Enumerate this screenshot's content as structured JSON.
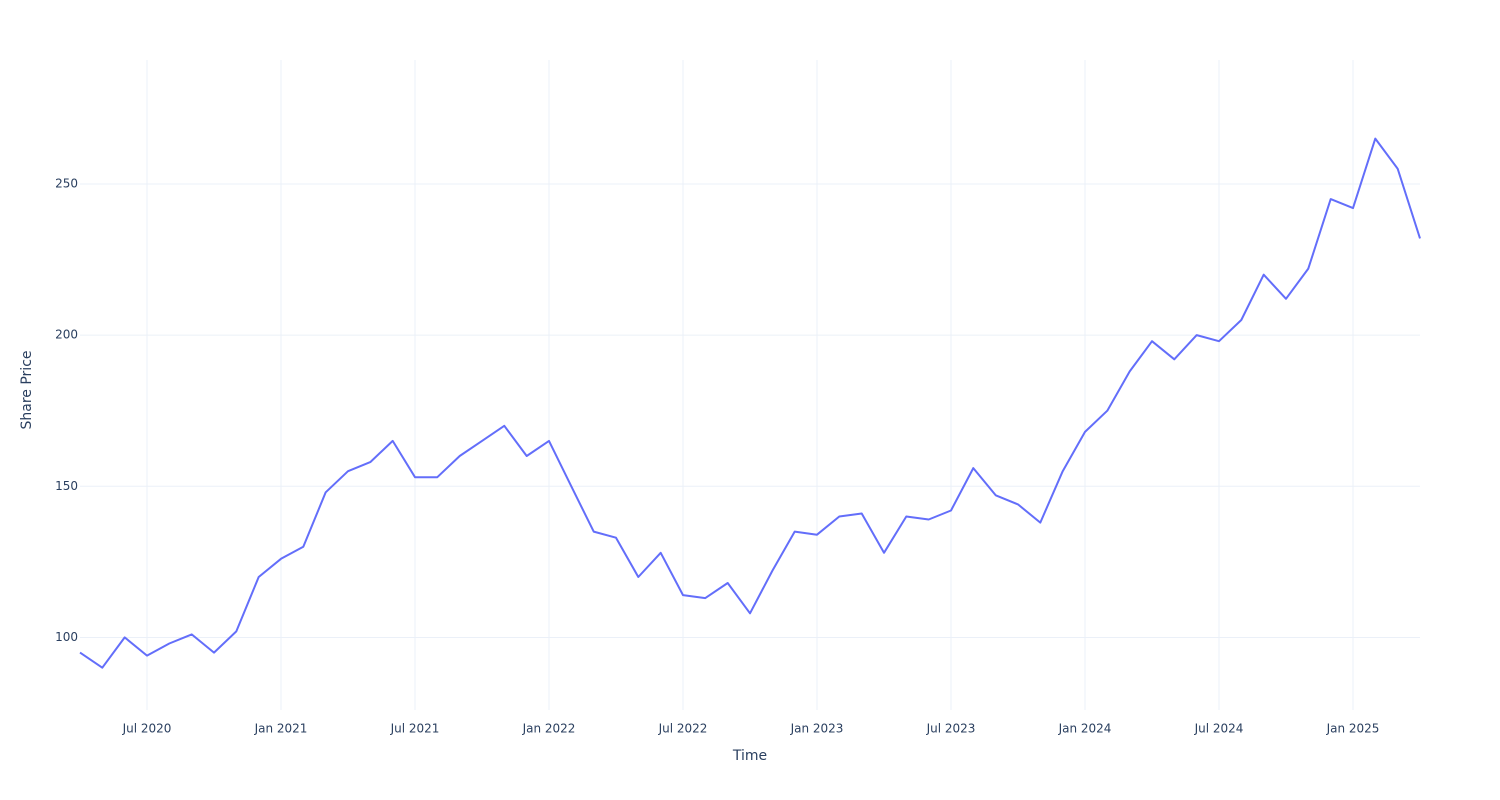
{
  "chart_data": {
    "type": "line",
    "x_label": "Time",
    "y_label": "Share Price",
    "x": [
      "2020-04",
      "2020-05",
      "2020-06",
      "2020-07",
      "2020-08",
      "2020-09",
      "2020-10",
      "2020-11",
      "2020-12",
      "2021-01",
      "2021-02",
      "2021-03",
      "2021-04",
      "2021-05",
      "2021-06",
      "2021-07",
      "2021-08",
      "2021-09",
      "2021-10",
      "2021-11",
      "2021-12",
      "2022-01",
      "2022-02",
      "2022-03",
      "2022-04",
      "2022-05",
      "2022-06",
      "2022-07",
      "2022-08",
      "2022-09",
      "2022-10",
      "2022-11",
      "2022-12",
      "2023-01",
      "2023-02",
      "2023-03",
      "2023-04",
      "2023-05",
      "2023-06",
      "2023-07",
      "2023-08",
      "2023-09",
      "2023-10",
      "2023-11",
      "2023-12",
      "2024-01",
      "2024-02",
      "2024-03",
      "2024-04",
      "2024-05",
      "2024-06",
      "2024-07",
      "2024-08",
      "2024-09",
      "2024-10",
      "2024-11",
      "2024-12",
      "2025-01",
      "2025-02",
      "2025-03",
      "2025-04"
    ],
    "values": [
      95,
      90,
      100,
      94,
      98,
      101,
      95,
      102,
      120,
      126,
      130,
      148,
      155,
      158,
      165,
      153,
      153,
      160,
      165,
      170,
      160,
      165,
      150,
      135,
      133,
      120,
      128,
      114,
      113,
      118,
      108,
      122,
      135,
      134,
      140,
      141,
      128,
      140,
      139,
      142,
      156,
      147,
      144,
      138,
      155,
      168,
      175,
      188,
      198,
      192,
      200,
      198,
      205,
      220,
      212,
      222,
      245,
      242,
      265,
      255,
      232
    ],
    "color": "#636efa",
    "xlim": [
      "2020-04",
      "2025-04"
    ],
    "xticks": [
      {
        "value": "2020-07",
        "label": "Jul 2020"
      },
      {
        "value": "2021-01",
        "label": "Jan 2021"
      },
      {
        "value": "2021-07",
        "label": "Jul 2021"
      },
      {
        "value": "2022-01",
        "label": "Jan 2022"
      },
      {
        "value": "2022-07",
        "label": "Jul 2022"
      },
      {
        "value": "2023-01",
        "label": "Jan 2023"
      },
      {
        "value": "2023-07",
        "label": "Jul 2023"
      },
      {
        "value": "2024-01",
        "label": "Jan 2024"
      },
      {
        "value": "2024-07",
        "label": "Jul 2024"
      },
      {
        "value": "2025-01",
        "label": "Jan 2025"
      }
    ],
    "ylim": [
      76,
      291
    ],
    "yticks": [
      100,
      150,
      200,
      250
    ],
    "grid": true
  }
}
